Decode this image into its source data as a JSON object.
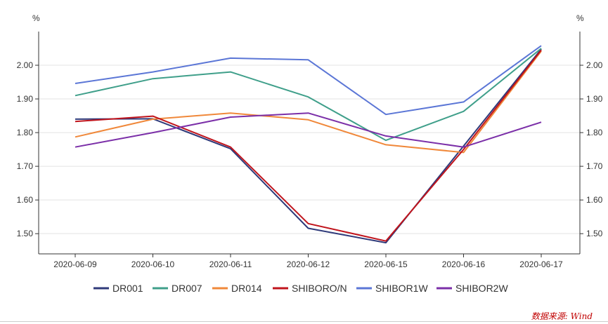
{
  "chart_data": {
    "type": "line",
    "left_unit": "%",
    "right_unit": "%",
    "categories": [
      "2020-06-09",
      "2020-06-10",
      "2020-06-11",
      "2020-06-12",
      "2020-06-15",
      "2020-06-16",
      "2020-06-17"
    ],
    "ylim": [
      1.44,
      2.1
    ],
    "yticks": [
      "1.50",
      "1.60",
      "1.70",
      "1.80",
      "1.90",
      "2.00"
    ],
    "grid": "horizontal",
    "legend_position": "bottom",
    "series": [
      {
        "name": "DR001",
        "color": "#2f3a7a",
        "values": [
          1.84,
          1.841,
          1.752,
          1.516,
          1.473,
          1.76,
          2.048
        ]
      },
      {
        "name": "DR007",
        "color": "#3f9f8a",
        "values": [
          1.91,
          1.96,
          1.98,
          1.906,
          1.777,
          1.863,
          2.05
        ]
      },
      {
        "name": "DR014",
        "color": "#f0883a",
        "values": [
          1.787,
          1.84,
          1.858,
          1.838,
          1.764,
          1.741,
          2.042
        ]
      },
      {
        "name": "SHIBORO/N",
        "color": "#c0141c",
        "values": [
          1.833,
          1.849,
          1.757,
          1.53,
          1.478,
          1.75,
          2.045
        ]
      },
      {
        "name": "SHIBOR1W",
        "color": "#5b76d6",
        "values": [
          1.946,
          1.98,
          2.021,
          2.016,
          1.854,
          1.891,
          2.058
        ]
      },
      {
        "name": "SHIBOR2W",
        "color": "#7b2fa8",
        "values": [
          1.757,
          1.8,
          1.846,
          1.858,
          1.79,
          1.757,
          1.831
        ]
      }
    ]
  },
  "source_text": "数据来源: Wind"
}
